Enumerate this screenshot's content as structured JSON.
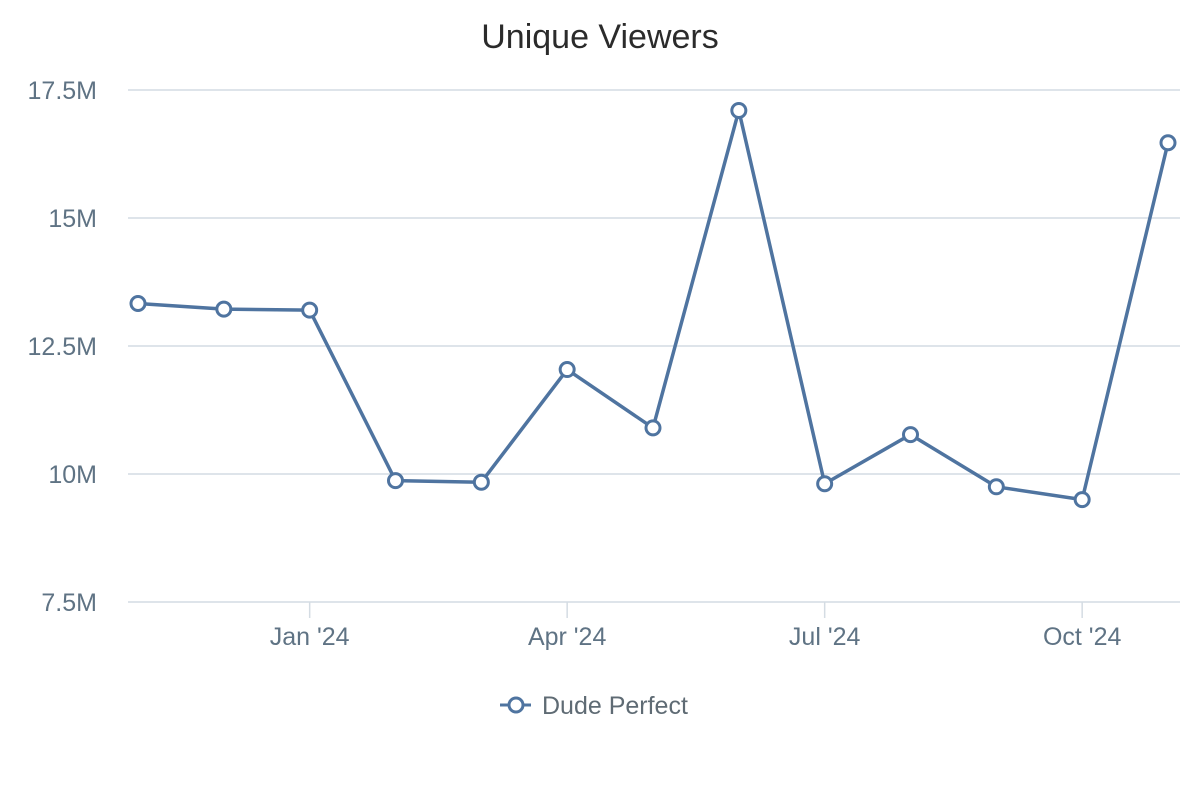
{
  "chart_data": {
    "type": "line",
    "title": "Unique Viewers",
    "xlabel": "",
    "ylabel": "",
    "x": [
      "2023-11",
      "2023-12",
      "2024-01",
      "2024-02",
      "2024-03",
      "2024-04",
      "2024-05",
      "2024-06",
      "2024-07",
      "2024-08",
      "2024-09",
      "2024-10",
      "2024-11"
    ],
    "x_tick_labels": [
      {
        "month": "2024-01",
        "label": "Jan '24"
      },
      {
        "month": "2024-04",
        "label": "Apr '24"
      },
      {
        "month": "2024-07",
        "label": "Jul '24"
      },
      {
        "month": "2024-10",
        "label": "Oct '24"
      }
    ],
    "y_tick_values": [
      7500000,
      10000000,
      12500000,
      15000000,
      17500000
    ],
    "y_tick_labels": [
      "7.5M",
      "10M",
      "12.5M",
      "15M",
      "17.5M"
    ],
    "ylim": [
      7500000,
      17500000
    ],
    "grid": true,
    "legend_position": "bottom",
    "series": [
      {
        "name": "Dude Perfect",
        "color": "#4f74a0",
        "values": [
          13330000,
          13220000,
          13200000,
          9870000,
          9840000,
          12040000,
          10900000,
          17100000,
          9810000,
          10770000,
          9750000,
          9500000,
          16470000
        ]
      }
    ]
  }
}
